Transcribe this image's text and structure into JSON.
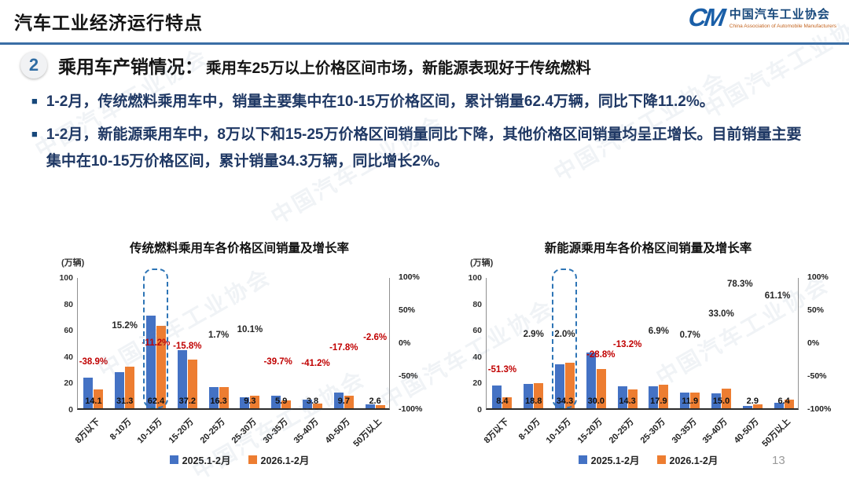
{
  "header": {
    "title": "汽车工业经济运行特点",
    "logo": {
      "mark": "CM",
      "org_cn": "中国汽车工业协会",
      "org_en": "China Association of Automobile Manufacturers"
    }
  },
  "section": {
    "number": "2",
    "title": "乘用车产销情况：",
    "subtitle": "乘用车25万以上价格区间市场，新能源表现好于传统燃料"
  },
  "bullets": [
    "1-2月，传统燃料乘用车中，销量主要集中在10-15万价格区间，累计销量62.4万辆，同比下降11.2%。",
    "1-2月，新能源乘用车中，8万以下和15-25万价格区间销量同比下降，其他价格区间销量均呈正增长。目前销量主要集中在10-15万价格区间，累计销量34.3万辆，同比增长2%。"
  ],
  "watermark": {
    "text": "中国汽车工业协会"
  },
  "page_number": "13",
  "colors": {
    "bar_blue": "#4472C4",
    "bar_orange": "#ED7D31",
    "negative_red": "#C00000",
    "positive_black": "#262626",
    "accent_blue": "#1F4E79"
  },
  "chart_data": [
    {
      "type": "bar",
      "title": "传统燃料乘用车各价格区间销量及增长率",
      "unit": "(万辆)",
      "categories": [
        "8万以下",
        "8-10万",
        "10-15万",
        "15-20万",
        "20-25万",
        "25-30万",
        "30-35万",
        "35-40万",
        "40-50万",
        "50万以上"
      ],
      "series": [
        {
          "name": "2025.1-2月",
          "values": [
            23.1,
            27.2,
            70.3,
            44.2,
            16.0,
            8.4,
            9.8,
            6.5,
            11.8,
            2.7
          ]
        },
        {
          "name": "2026.1-2月",
          "values": [
            14.1,
            31.3,
            62.4,
            37.2,
            16.3,
            9.3,
            5.9,
            3.8,
            9.7,
            2.6
          ]
        }
      ],
      "value_labels": [
        "14.1",
        "31.3",
        "62.4",
        "37.2",
        "16.3",
        "9.3",
        "5.9",
        "3.8",
        "9.7",
        "2.6"
      ],
      "growth": [
        {
          "text": "-38.9%",
          "value": -38.9
        },
        {
          "text": "15.2%",
          "value": 15.2
        },
        {
          "text": "-11.2%",
          "value": -11.2
        },
        {
          "text": "-15.8%",
          "value": -15.8
        },
        {
          "text": "1.7%",
          "value": 1.7
        },
        {
          "text": "10.1%",
          "value": 10.1
        },
        {
          "text": "-39.7%",
          "value": -39.7,
          "dx": -4
        },
        {
          "text": "-41.2%",
          "value": -41.2,
          "dx": 4
        },
        {
          "text": "-17.8%",
          "value": -17.8
        },
        {
          "text": "-2.6%",
          "value": -2.6
        }
      ],
      "ylim": [
        0,
        100
      ],
      "y_ticks": [
        "100",
        "80",
        "60",
        "40",
        "20",
        "0"
      ],
      "y2_ticks": [
        "100%",
        "50%",
        "0%",
        "-50%",
        "-100%"
      ],
      "highlight_index": 2,
      "grid": false,
      "legend_position": "bottom"
    },
    {
      "type": "bar",
      "title": "新能源乘用车各价格区间销量及增长率",
      "unit": "(万辆)",
      "categories": [
        "8万以下",
        "8-10万",
        "10-15万",
        "15-20万",
        "20-25万",
        "25-30万",
        "30-35万",
        "35-40万",
        "40-50万",
        "50万以上"
      ],
      "series": [
        {
          "name": "2025.1-2月",
          "values": [
            17.2,
            18.3,
            33.6,
            42.1,
            16.5,
            16.7,
            11.8,
            11.3,
            1.6,
            4.0
          ]
        },
        {
          "name": "2026.1-2月",
          "values": [
            8.4,
            18.8,
            34.3,
            30.0,
            14.3,
            17.9,
            11.9,
            15.0,
            2.9,
            6.4
          ]
        }
      ],
      "value_labels": [
        "8.4",
        "18.8",
        "34.3",
        "30.0",
        "14.3",
        "17.9",
        "11.9",
        "15.0",
        "2.9",
        "6.4"
      ],
      "growth": [
        {
          "text": "-51.3%",
          "value": -51.3
        },
        {
          "text": "2.9%",
          "value": 2.9
        },
        {
          "text": "2.0%",
          "value": 2.0
        },
        {
          "text": "-28.8%",
          "value": -28.8,
          "dx": 6
        },
        {
          "text": "-13.2%",
          "value": -13.2
        },
        {
          "text": "6.9%",
          "value": 6.9
        },
        {
          "text": "0.7%",
          "value": 0.7
        },
        {
          "text": "33.0%",
          "value": 33.0
        },
        {
          "text": "78.3%",
          "value": 78.3,
          "dx": -16
        },
        {
          "text": "61.1%",
          "value": 61.1,
          "dx": -8
        }
      ],
      "ylim": [
        0,
        100
      ],
      "y_ticks": [
        "100",
        "80",
        "60",
        "40",
        "20",
        "0"
      ],
      "y2_ticks": [
        "100%",
        "50%",
        "0%",
        "-50%",
        "-100%"
      ],
      "highlight_index": 2,
      "grid": false,
      "legend_position": "bottom"
    }
  ]
}
